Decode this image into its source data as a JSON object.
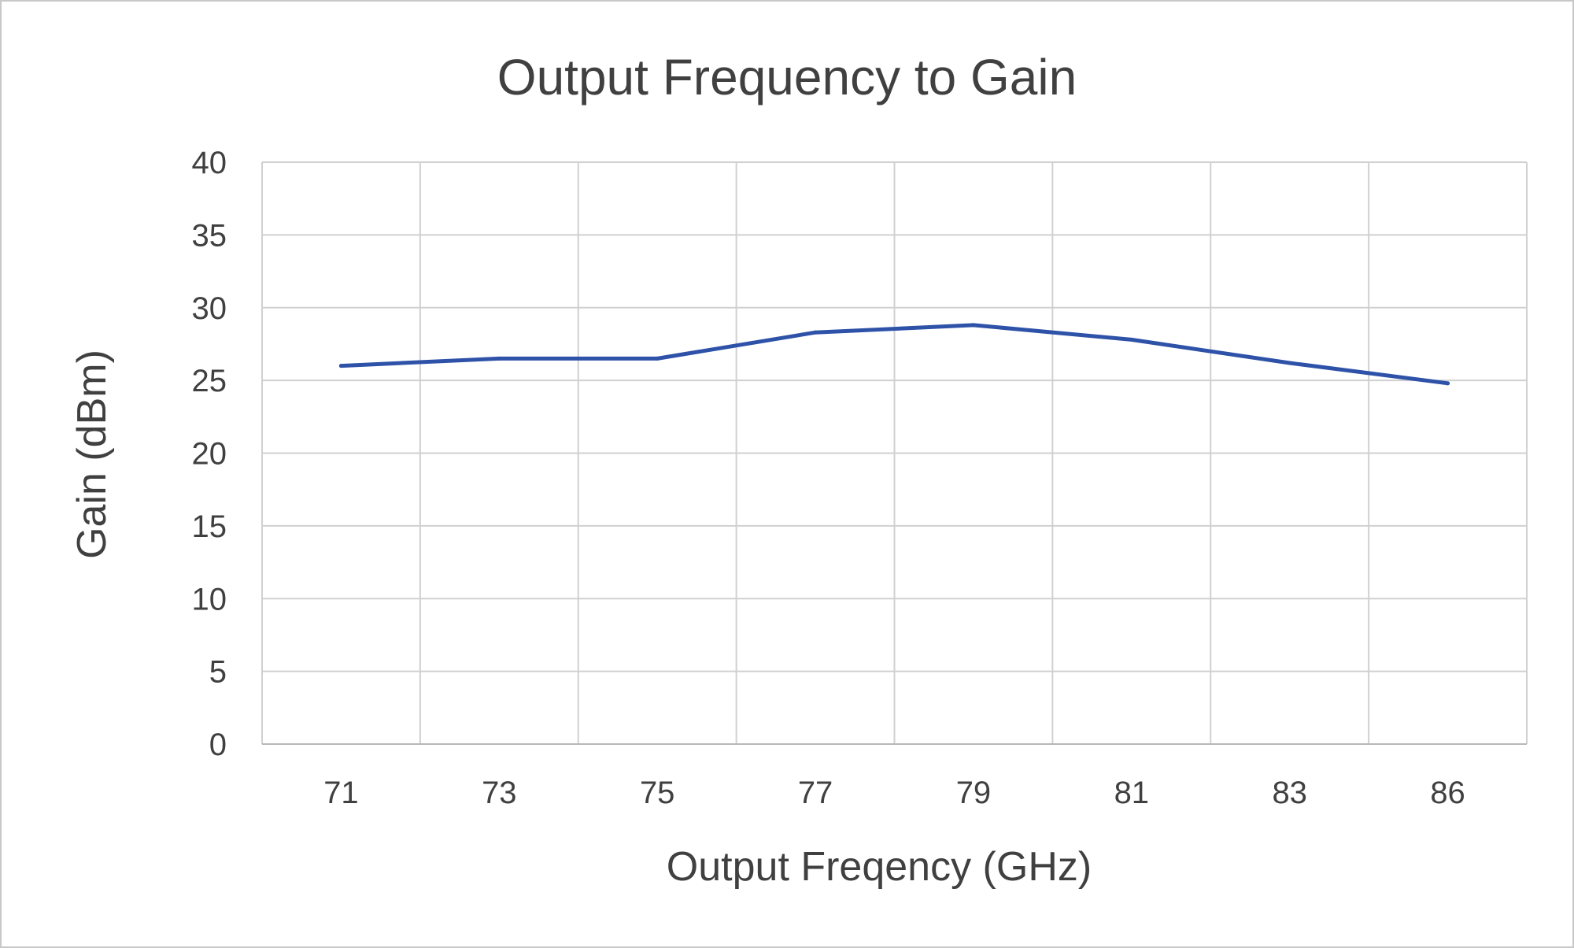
{
  "chart_data": {
    "type": "line",
    "title": "Output Frequency to Gain",
    "xlabel": "Output Freqency (GHz)",
    "ylabel": "Gain (dBm)",
    "categories": [
      "71",
      "73",
      "75",
      "77",
      "79",
      "81",
      "83",
      "86"
    ],
    "series": [
      {
        "values": [
          26.0,
          26.5,
          26.5,
          28.3,
          28.8,
          27.8,
          26.2,
          24.8
        ]
      }
    ],
    "ylim": [
      0,
      40
    ],
    "yticks": [
      "0",
      "5",
      "10",
      "15",
      "20",
      "25",
      "30",
      "35",
      "40"
    ],
    "grid": true,
    "legend": "none",
    "colors": {
      "line": "#2e52a8",
      "grid": "#d0d0d0",
      "text": "#404040",
      "frame": "#c8c8c8"
    }
  }
}
